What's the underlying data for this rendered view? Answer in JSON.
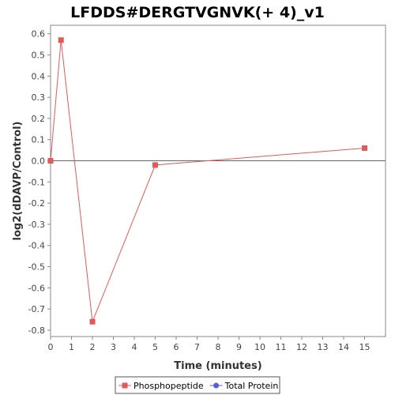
{
  "chart_data": {
    "type": "line",
    "title": "LFDDS#DERGTVGNVK(+ 4)_v1",
    "xlabel": "Time (minutes)",
    "ylabel": "log2(dDAVP/Control)",
    "xlim": [
      0,
      16
    ],
    "ylim": [
      -0.83,
      0.64
    ],
    "x_ticks": [
      0,
      1,
      2,
      3,
      4,
      5,
      6,
      7,
      8,
      9,
      10,
      11,
      12,
      13,
      14,
      15
    ],
    "y_ticks": [
      0.6,
      0.5,
      0.4,
      0.3,
      0.2,
      0.1,
      0.0,
      -0.1,
      -0.2,
      -0.3,
      -0.4,
      -0.5,
      -0.6,
      -0.7,
      -0.8
    ],
    "x_tick_labels": [
      "0",
      "1",
      "2",
      "3",
      "4",
      "5",
      "6",
      "7",
      "8",
      "9",
      "10",
      "11",
      "12",
      "13",
      "14",
      "15"
    ],
    "y_tick_labels": [
      "0.6",
      "0.5",
      "0.4",
      "0.3",
      "0.2",
      "0.1",
      "0.0",
      "-0.1",
      "-0.2",
      "-0.3",
      "-0.4",
      "-0.5",
      "-0.6",
      "-0.7",
      "-0.8"
    ],
    "grid": false,
    "zero_line": true,
    "legend_position": "bottom",
    "series": [
      {
        "name": "Phosphopeptide",
        "color": "#e05a5a",
        "marker": "square",
        "points": [
          {
            "x": 0,
            "y": 0.0
          },
          {
            "x": 0.5,
            "y": 0.57
          },
          {
            "x": 2,
            "y": -0.76
          },
          {
            "x": 5,
            "y": -0.02
          },
          {
            "x": 15,
            "y": 0.06
          }
        ]
      },
      {
        "name": "Total Protein",
        "color": "#5a5ae0",
        "marker": "circle",
        "points": []
      }
    ]
  }
}
